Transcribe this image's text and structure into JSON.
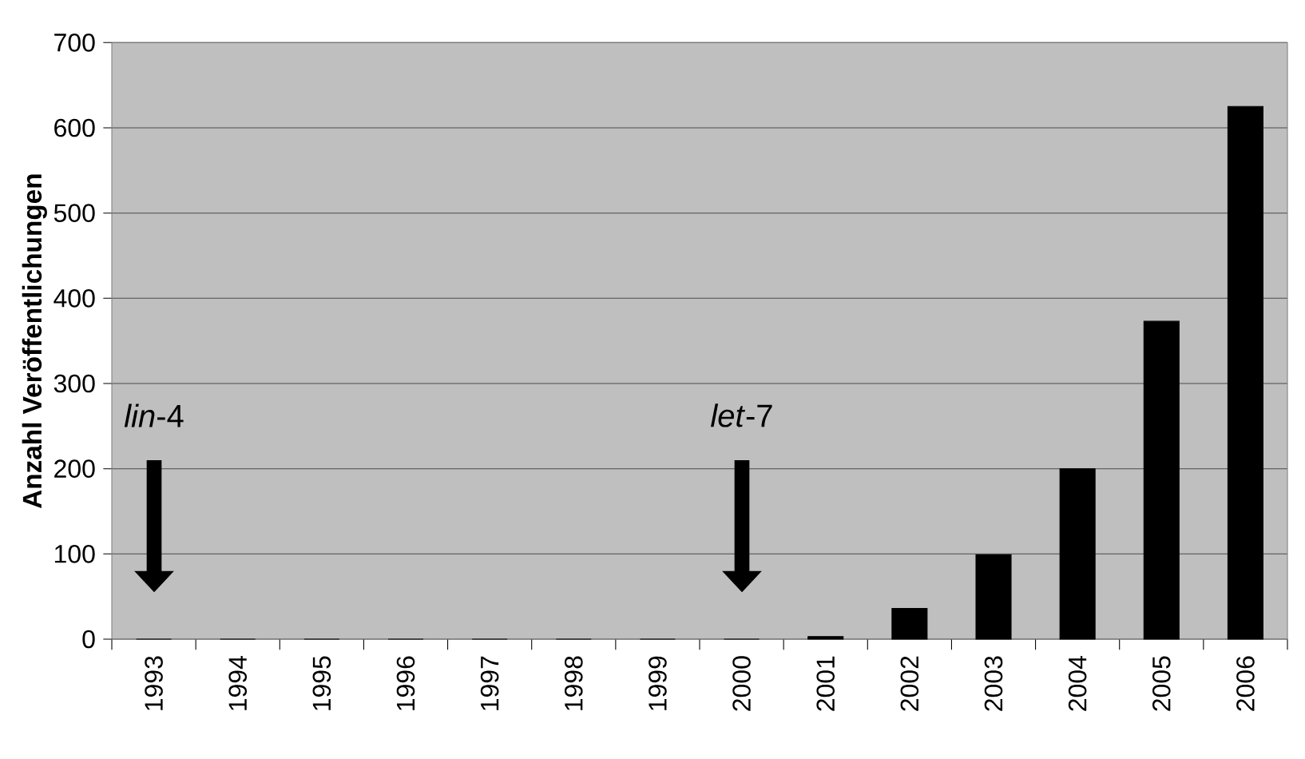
{
  "chart_data": {
    "type": "bar",
    "ylabel": "Anzahl Veröffentlichungen",
    "categories": [
      "1993",
      "1994",
      "1995",
      "1996",
      "1997",
      "1998",
      "1999",
      "2000",
      "2001",
      "2002",
      "2003",
      "2004",
      "2005",
      "2006"
    ],
    "values": [
      0,
      0,
      0,
      0,
      0,
      0,
      0,
      0,
      3,
      36,
      99,
      200,
      373,
      625
    ],
    "color": "#000000",
    "ylim": [
      0,
      700
    ],
    "yticks": [
      0,
      100,
      200,
      300,
      400,
      500,
      600,
      700
    ],
    "grid": "y",
    "annotations": [
      "*lin*-4",
      "*let*-7"
    ]
  }
}
